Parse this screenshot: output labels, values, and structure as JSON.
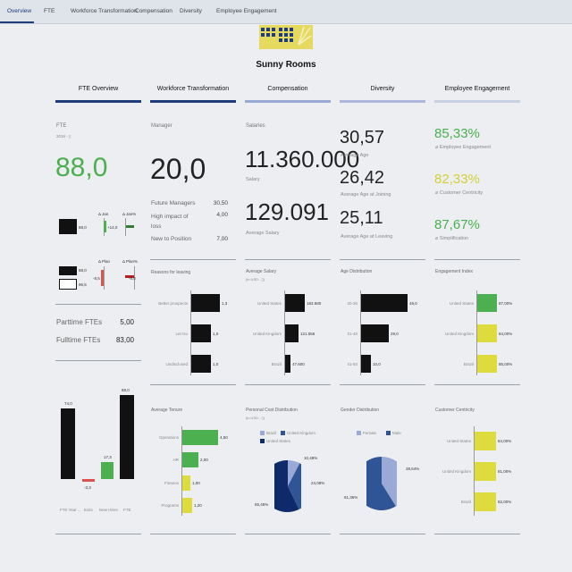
{
  "nav": {
    "tabs": [
      "Overview",
      "FTE",
      "Workforce Transformation",
      "Compensation",
      "Diversity",
      "Employee Engagement"
    ]
  },
  "company": {
    "name": "Sunny Rooms"
  },
  "columns": [
    "FTE Overview",
    "Workforce Transformation",
    "Compensation",
    "Diversity",
    "Employee Engagement"
  ],
  "colors": {
    "dark_blue": "#1f3d7a",
    "light_blue": "#9aa9d6",
    "green": "#4caf50",
    "yellow": "#dedc3c",
    "black": "#111111"
  },
  "fte": {
    "label": "FTE",
    "year": "2016 - ▯",
    "value": "88,0",
    "delta_jan": "Δ Jan",
    "delta_jan_pct": "Δ Jan%",
    "bar1_value": "88,0",
    "bar1_delta": "+14,0",
    "delta_plan": "Δ Plan",
    "delta_plan_pct": "Δ Plan%",
    "actual": "88,0",
    "plan": "96,5",
    "plan_delta": "-8,5",
    "plan_delta_pct": "-8,8",
    "parttime_label": "Parttime FTEs",
    "parttime_value": "5,00",
    "fulltime_label": "Fulltime FTEs",
    "fulltime_value": "83,00"
  },
  "waterfall": {
    "categories": [
      "FTE Year ...",
      "Exits",
      "New Hires",
      "FTE"
    ],
    "values": [
      "74,0",
      "-3,3",
      "17,3",
      "88,0"
    ]
  },
  "workforce": {
    "label": "Manager",
    "value": "20,0",
    "rows": [
      {
        "label": "Future Managers",
        "value": "30,50"
      },
      {
        "label": "High impact of loss",
        "value": "4,00"
      },
      {
        "label": "New to Position",
        "value": "7,00"
      }
    ],
    "reasons_title": "Reasons for leaving",
    "reasons": [
      {
        "label": "Better prospects",
        "value": "1,3"
      },
      {
        "label": "Let Go",
        "value": "1,0"
      },
      {
        "label": "Undisclosed",
        "value": "1,0"
      }
    ],
    "tenure_title": "Average Tenure",
    "tenure": [
      {
        "label": "Operations",
        "value": "4,50"
      },
      {
        "label": "HR",
        "value": "2,00"
      },
      {
        "label": "Finance",
        "value": "1,00"
      },
      {
        "label": "Programs",
        "value": "1,20"
      }
    ]
  },
  "compensation": {
    "salaries_label": "Salaries",
    "salaries_value": "11.360.000",
    "salary_label": "Salary",
    "avg_value": "129.091",
    "avg_label": "Average Salary",
    "avg_salary_title": "Average Salary",
    "avg_salary_unit": "(in USD - ▯)",
    "avg_salary": [
      {
        "label": "United States",
        "value": "183.580"
      },
      {
        "label": "United Kingdom",
        "value": "121.556"
      },
      {
        "label": "Brazil",
        "value": "47.600"
      }
    ],
    "pcd_title": "Personal Cost Distribution",
    "pcd_unit": "(in USD - ▯)",
    "pcd_legend": [
      "Brazil",
      "United Kingdom",
      "United States"
    ],
    "pcd_labels": [
      "10,48%",
      "24,08%",
      "65,45%"
    ]
  },
  "diversity": {
    "age_value": "30,57",
    "age_label": "Average Age",
    "join_value": "26,42",
    "join_label": "Average Age at Joining",
    "leave_value": "25,11",
    "leave_label": "Average Age at Leaving",
    "age_dist_title": "Age Distribution",
    "age_dist": [
      {
        "label": "20-30",
        "value": "49,0"
      },
      {
        "label": "31-40",
        "value": "29,0"
      },
      {
        "label": "41-50",
        "value": "10,0"
      }
    ],
    "gender_title": "Gender Distribution",
    "gender_legend": [
      "Female",
      "Male"
    ],
    "gender_labels": [
      "38,64%",
      "61,36%"
    ]
  },
  "engagement": {
    "kpi1_value": "85,33%",
    "kpi1_label": "⌀ Employee Engagement",
    "kpi2_value": "82,33%",
    "kpi2_label": "⌀ Customer Centricity",
    "kpi3_value": "87,67%",
    "kpi3_label": "⌀ Simplification",
    "index_title": "Engagement Index",
    "index": [
      {
        "label": "United States",
        "value": "87,00%"
      },
      {
        "label": "United Kingdom",
        "value": "84,00%"
      },
      {
        "label": "Brazil",
        "value": "85,00%"
      }
    ],
    "cc_title": "Customer Centricity",
    "cc": [
      {
        "label": "United States",
        "value": "84,00%"
      },
      {
        "label": "United Kingdom",
        "value": "81,00%"
      },
      {
        "label": "Brazil",
        "value": "82,00%"
      }
    ]
  }
}
